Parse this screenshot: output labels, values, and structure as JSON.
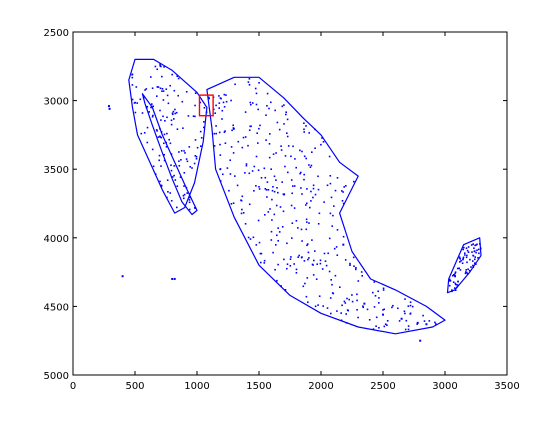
{
  "chart_data": {
    "type": "scatter",
    "title": "",
    "xlabel": "",
    "ylabel": "",
    "xlim": [
      0,
      3500
    ],
    "ylim": [
      2500,
      5000
    ],
    "y_reversed": true,
    "grid": false,
    "x_ticks": [
      0,
      500,
      1000,
      1500,
      2000,
      2500,
      3000,
      3500
    ],
    "y_ticks": [
      2500,
      3000,
      3500,
      4000,
      4500,
      5000
    ],
    "series": [
      {
        "color": "#0000ff",
        "marker": "point",
        "regions": [
          {
            "x": [
              500,
              650,
              800,
              900,
              1000,
              1080,
              1050,
              980,
              900,
              820,
              720,
              620,
              520,
              480,
              450,
              500
            ],
            "y": [
              2700,
              2700,
              2780,
              2860,
              2940,
              3050,
              3300,
              3600,
              3780,
              3820,
              3650,
              3450,
              3250,
              3050,
              2850,
              2700
            ]
          },
          {
            "x": [
              560,
              640,
              720,
              820,
              920,
              1000,
              960,
              880,
              800,
              720,
              640,
              580,
              560
            ],
            "y": [
              2950,
              3050,
              3250,
              3450,
              3650,
              3800,
              3830,
              3740,
              3570,
              3380,
              3180,
              3020,
              2950
            ]
          },
          {
            "x": [
              1080,
              1300,
              1500,
              1700,
              1860,
              2000,
              2150,
              2300,
              2150,
              2250,
              2400,
              2600,
              2850,
              3000,
              2900,
              2600,
              2300,
              2000,
              1750,
              1500,
              1300,
              1150,
              1120,
              1080
            ],
            "y": [
              2920,
              2830,
              2830,
              2980,
              3130,
              3250,
              3450,
              3550,
              3820,
              4100,
              4300,
              4380,
              4500,
              4600,
              4650,
              4700,
              4650,
              4550,
              4420,
              4200,
              3850,
              3500,
              3200,
              2920
            ]
          },
          {
            "x": [
              3030,
              3150,
              3280,
              3290,
              3200,
              3080,
              3020,
              3030
            ],
            "y": [
              4300,
              4050,
              4000,
              4130,
              4250,
              4380,
              4400,
              4300
            ]
          }
        ],
        "points": [
          {
            "x": 290,
            "y": 3040
          },
          {
            "x": 295,
            "y": 3060
          },
          {
            "x": 400,
            "y": 4280
          },
          {
            "x": 800,
            "y": 4300
          },
          {
            "x": 820,
            "y": 4300
          },
          {
            "x": 2180,
            "y": 4050
          },
          {
            "x": 2500,
            "y": 4560
          },
          {
            "x": 2650,
            "y": 4590
          },
          {
            "x": 2780,
            "y": 4620
          },
          {
            "x": 2850,
            "y": 4630
          },
          {
            "x": 2800,
            "y": 4750
          },
          {
            "x": 2350,
            "y": 4480
          }
        ]
      },
      {
        "color": "#ff0000",
        "marker": "box",
        "box": {
          "x": [
            1020,
            1130
          ],
          "y": [
            2960,
            3110
          ]
        }
      }
    ]
  }
}
